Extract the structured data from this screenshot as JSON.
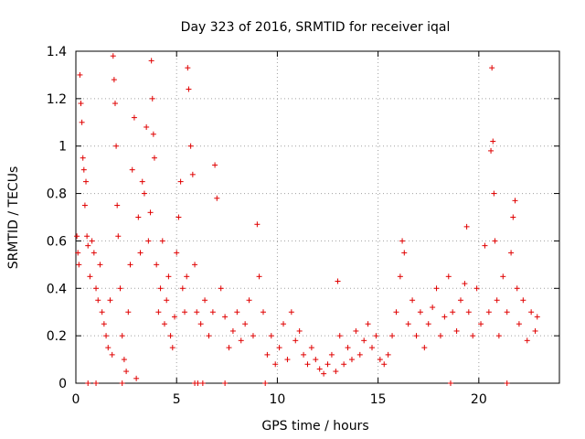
{
  "chart_data": {
    "type": "scatter",
    "title": "Day 323 of 2016, SRMTID for receiver iqal",
    "xlabel": "GPS time / hours",
    "ylabel": "SRMTID / TECUs",
    "xlim": [
      0,
      24
    ],
    "ylim": [
      0,
      1.4
    ],
    "xticks": [
      0,
      5,
      10,
      15,
      20
    ],
    "yticks": [
      0,
      0.2,
      0.4,
      0.6,
      0.8,
      1,
      1.2,
      1.4
    ],
    "xtick_labels": [
      "0",
      "5",
      "10",
      "15",
      "20"
    ],
    "ytick_labels": [
      "0",
      "0.2",
      "0.4",
      "0.6",
      "0.8",
      "1",
      "1.2",
      "1.4"
    ],
    "grid": true,
    "marker": "+",
    "series": [
      {
        "name": "SRMTID",
        "color": "#e00000",
        "points": [
          [
            0.05,
            0.62
          ],
          [
            0.1,
            0.55
          ],
          [
            0.15,
            0.5
          ],
          [
            0.2,
            1.3
          ],
          [
            0.25,
            1.18
          ],
          [
            0.3,
            1.1
          ],
          [
            0.35,
            0.95
          ],
          [
            0.4,
            0.9
          ],
          [
            0.45,
            0.75
          ],
          [
            0.5,
            0.85
          ],
          [
            0.55,
            0.62
          ],
          [
            0.6,
            0.58
          ],
          [
            0.7,
            0.45
          ],
          [
            0.8,
            0.6
          ],
          [
            0.9,
            0.55
          ],
          [
            1.0,
            0.4
          ],
          [
            1.1,
            0.35
          ],
          [
            1.2,
            0.5
          ],
          [
            1.3,
            0.3
          ],
          [
            1.4,
            0.25
          ],
          [
            1.5,
            0.2
          ],
          [
            1.6,
            0.15
          ],
          [
            1.7,
            0.35
          ],
          [
            1.8,
            0.12
          ],
          [
            1.85,
            1.38
          ],
          [
            1.9,
            1.28
          ],
          [
            1.95,
            1.18
          ],
          [
            2.0,
            1.0
          ],
          [
            2.05,
            0.75
          ],
          [
            2.1,
            0.62
          ],
          [
            2.2,
            0.4
          ],
          [
            2.3,
            0.2
          ],
          [
            2.4,
            0.1
          ],
          [
            2.5,
            0.05
          ],
          [
            2.6,
            0.3
          ],
          [
            2.7,
            0.5
          ],
          [
            2.8,
            0.9
          ],
          [
            2.9,
            1.12
          ],
          [
            3.0,
            0.02
          ],
          [
            3.1,
            0.7
          ],
          [
            3.2,
            0.55
          ],
          [
            3.3,
            0.85
          ],
          [
            3.4,
            0.8
          ],
          [
            3.5,
            1.08
          ],
          [
            3.6,
            0.6
          ],
          [
            3.7,
            0.72
          ],
          [
            3.75,
            1.36
          ],
          [
            3.8,
            1.2
          ],
          [
            3.85,
            1.05
          ],
          [
            3.9,
            0.95
          ],
          [
            4.0,
            0.5
          ],
          [
            4.1,
            0.3
          ],
          [
            4.2,
            0.4
          ],
          [
            4.3,
            0.6
          ],
          [
            4.4,
            0.25
          ],
          [
            4.5,
            0.35
          ],
          [
            4.6,
            0.45
          ],
          [
            4.7,
            0.2
          ],
          [
            4.8,
            0.15
          ],
          [
            4.9,
            0.28
          ],
          [
            5.0,
            0.55
          ],
          [
            5.1,
            0.7
          ],
          [
            5.2,
            0.85
          ],
          [
            5.3,
            0.4
          ],
          [
            5.4,
            0.3
          ],
          [
            5.5,
            0.45
          ],
          [
            5.55,
            1.33
          ],
          [
            5.6,
            1.24
          ],
          [
            5.7,
            1.0
          ],
          [
            5.8,
            0.88
          ],
          [
            5.9,
            0.5
          ],
          [
            6.0,
            0.3
          ],
          [
            6.2,
            0.25
          ],
          [
            6.4,
            0.35
          ],
          [
            6.6,
            0.2
          ],
          [
            6.8,
            0.3
          ],
          [
            6.9,
            0.92
          ],
          [
            7.0,
            0.78
          ],
          [
            7.2,
            0.4
          ],
          [
            7.4,
            0.28
          ],
          [
            7.6,
            0.15
          ],
          [
            7.8,
            0.22
          ],
          [
            8.0,
            0.3
          ],
          [
            8.2,
            0.18
          ],
          [
            8.4,
            0.25
          ],
          [
            8.6,
            0.35
          ],
          [
            8.8,
            0.2
          ],
          [
            9.0,
            0.67
          ],
          [
            9.1,
            0.45
          ],
          [
            9.3,
            0.3
          ],
          [
            9.5,
            0.12
          ],
          [
            9.7,
            0.2
          ],
          [
            9.9,
            0.08
          ],
          [
            10.1,
            0.15
          ],
          [
            10.3,
            0.25
          ],
          [
            10.5,
            0.1
          ],
          [
            10.7,
            0.3
          ],
          [
            10.9,
            0.18
          ],
          [
            11.1,
            0.22
          ],
          [
            11.3,
            0.12
          ],
          [
            11.5,
            0.08
          ],
          [
            11.7,
            0.15
          ],
          [
            11.9,
            0.1
          ],
          [
            12.1,
            0.06
          ],
          [
            12.3,
            0.04
          ],
          [
            12.5,
            0.08
          ],
          [
            12.7,
            0.12
          ],
          [
            12.9,
            0.05
          ],
          [
            13.0,
            0.43
          ],
          [
            13.1,
            0.2
          ],
          [
            13.3,
            0.08
          ],
          [
            13.5,
            0.15
          ],
          [
            13.7,
            0.1
          ],
          [
            13.9,
            0.22
          ],
          [
            14.1,
            0.12
          ],
          [
            14.3,
            0.18
          ],
          [
            14.5,
            0.25
          ],
          [
            14.7,
            0.15
          ],
          [
            14.9,
            0.2
          ],
          [
            15.1,
            0.1
          ],
          [
            15.3,
            0.08
          ],
          [
            15.5,
            0.12
          ],
          [
            15.7,
            0.2
          ],
          [
            15.9,
            0.3
          ],
          [
            16.1,
            0.45
          ],
          [
            16.2,
            0.6
          ],
          [
            16.3,
            0.55
          ],
          [
            16.5,
            0.25
          ],
          [
            16.7,
            0.35
          ],
          [
            16.9,
            0.2
          ],
          [
            17.1,
            0.3
          ],
          [
            17.3,
            0.15
          ],
          [
            17.5,
            0.25
          ],
          [
            17.7,
            0.32
          ],
          [
            17.9,
            0.4
          ],
          [
            18.1,
            0.2
          ],
          [
            18.3,
            0.28
          ],
          [
            18.5,
            0.45
          ],
          [
            18.7,
            0.3
          ],
          [
            18.9,
            0.22
          ],
          [
            19.1,
            0.35
          ],
          [
            19.3,
            0.42
          ],
          [
            19.4,
            0.66
          ],
          [
            19.5,
            0.3
          ],
          [
            19.7,
            0.2
          ],
          [
            19.9,
            0.4
          ],
          [
            20.1,
            0.25
          ],
          [
            20.3,
            0.58
          ],
          [
            20.5,
            0.3
          ],
          [
            20.6,
            0.98
          ],
          [
            20.65,
            1.33
          ],
          [
            20.7,
            1.02
          ],
          [
            20.75,
            0.8
          ],
          [
            20.8,
            0.6
          ],
          [
            20.9,
            0.35
          ],
          [
            21.0,
            0.2
          ],
          [
            21.2,
            0.45
          ],
          [
            21.4,
            0.3
          ],
          [
            21.6,
            0.55
          ],
          [
            21.7,
            0.7
          ],
          [
            21.8,
            0.77
          ],
          [
            21.9,
            0.4
          ],
          [
            22.0,
            0.25
          ],
          [
            22.2,
            0.35
          ],
          [
            22.4,
            0.18
          ],
          [
            22.6,
            0.3
          ],
          [
            22.8,
            0.22
          ],
          [
            22.9,
            0.28
          ],
          [
            0.6,
            0.0
          ],
          [
            1.0,
            0.0
          ],
          [
            2.3,
            0.0
          ],
          [
            5.9,
            0.0
          ],
          [
            6.05,
            0.0
          ],
          [
            6.3,
            0.0
          ],
          [
            7.4,
            0.0
          ],
          [
            9.4,
            0.0
          ],
          [
            18.6,
            0.0
          ],
          [
            21.4,
            0.0
          ]
        ]
      }
    ]
  }
}
